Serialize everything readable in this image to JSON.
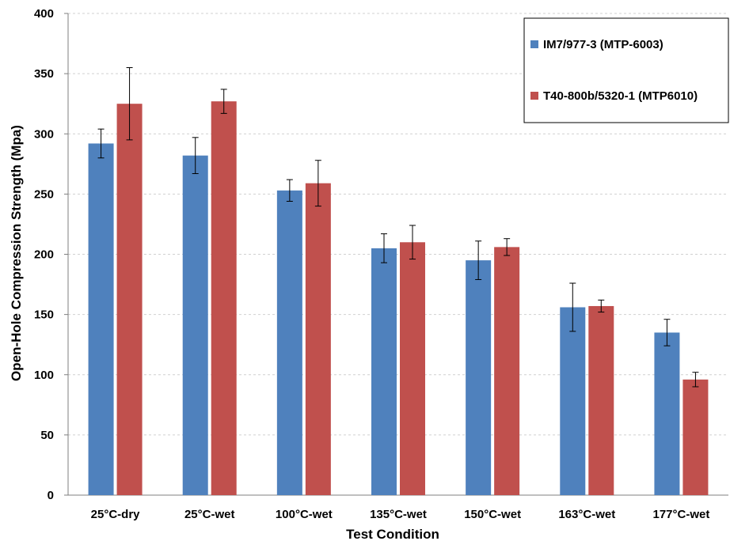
{
  "chart_data": {
    "type": "bar",
    "title": "",
    "xlabel": "Test Condition",
    "ylabel": "Open-Hole Compression Strength (Mpa)",
    "ylim": [
      0,
      400
    ],
    "yticks": [
      0,
      50,
      100,
      150,
      200,
      250,
      300,
      350,
      400
    ],
    "categories": [
      "25°C-dry",
      "25°C-wet",
      "100°C-wet",
      "135°C-wet",
      "150°C-wet",
      "163°C-wet",
      "177°C-wet"
    ],
    "series": [
      {
        "name": "IM7/977-3 (MTP-6003)",
        "color": "#4f81bd",
        "values": [
          292,
          282,
          253,
          205,
          195,
          156,
          135
        ],
        "errors": [
          12,
          15,
          9,
          12,
          16,
          20,
          11
        ]
      },
      {
        "name": "T40-800b/5320-1 (MTP6010)",
        "color": "#c0504d",
        "values": [
          325,
          327,
          259,
          210,
          206,
          157,
          96
        ],
        "errors": [
          30,
          10,
          19,
          14,
          7,
          5,
          6
        ]
      }
    ],
    "grid": true,
    "legend": "top-right"
  }
}
